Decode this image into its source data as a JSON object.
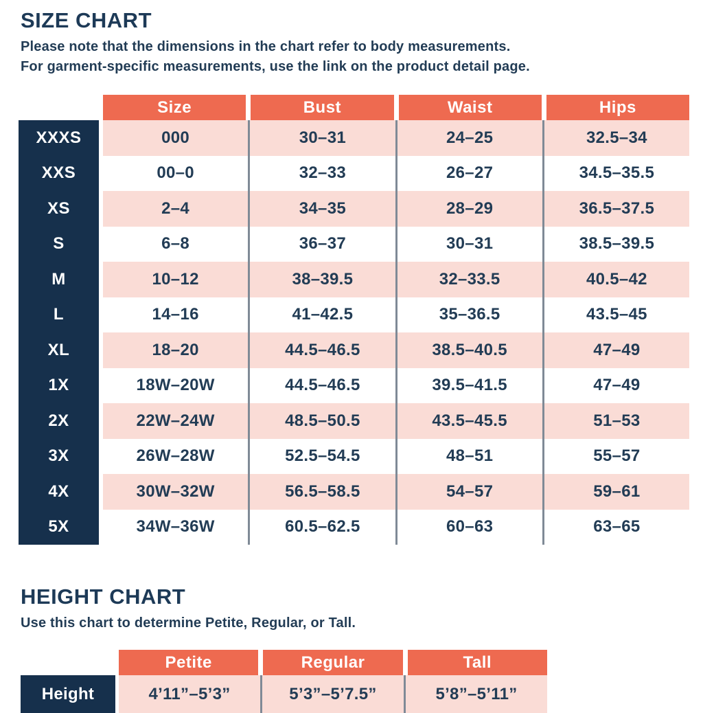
{
  "size_chart": {
    "title": "SIZE CHART",
    "note_line1": "Please note that the dimensions in the chart refer to body measurements.",
    "note_line2": "For garment-specific measurements, use the link on the product detail page.",
    "columns": [
      "Size",
      "Bust",
      "Waist",
      "Hips"
    ],
    "rows": [
      {
        "label": "XXXS",
        "size": "000",
        "bust": "30–31",
        "waist": "24–25",
        "hips": "32.5–34"
      },
      {
        "label": "XXS",
        "size": "00–0",
        "bust": "32–33",
        "waist": "26–27",
        "hips": "34.5–35.5"
      },
      {
        "label": "XS",
        "size": "2–4",
        "bust": "34–35",
        "waist": "28–29",
        "hips": "36.5–37.5"
      },
      {
        "label": "S",
        "size": "6–8",
        "bust": "36–37",
        "waist": "30–31",
        "hips": "38.5–39.5"
      },
      {
        "label": "M",
        "size": "10–12",
        "bust": "38–39.5",
        "waist": "32–33.5",
        "hips": "40.5–42"
      },
      {
        "label": "L",
        "size": "14–16",
        "bust": "41–42.5",
        "waist": "35–36.5",
        "hips": "43.5–45"
      },
      {
        "label": "XL",
        "size": "18–20",
        "bust": "44.5–46.5",
        "waist": "38.5–40.5",
        "hips": "47–49"
      },
      {
        "label": "1X",
        "size": "18W–20W",
        "bust": "44.5–46.5",
        "waist": "39.5–41.5",
        "hips": "47–49"
      },
      {
        "label": "2X",
        "size": "22W–24W",
        "bust": "48.5–50.5",
        "waist": "43.5–45.5",
        "hips": "51–53"
      },
      {
        "label": "3X",
        "size": "26W–28W",
        "bust": "52.5–54.5",
        "waist": "48–51",
        "hips": "55–57"
      },
      {
        "label": "4X",
        "size": "30W–32W",
        "bust": "56.5–58.5",
        "waist": "54–57",
        "hips": "59–61"
      },
      {
        "label": "5X",
        "size": "34W–36W",
        "bust": "60.5–62.5",
        "waist": "60–63",
        "hips": "63–65"
      }
    ]
  },
  "height_chart": {
    "title": "HEIGHT CHART",
    "note": "Use this chart to determine Petite, Regular, or Tall.",
    "columns": [
      "Petite",
      "Regular",
      "Tall"
    ],
    "row_label": "Height",
    "values": [
      "4’11”–5’3”",
      "5’3”–5’7.5”",
      "5’8”–5’11”"
    ]
  },
  "colors": {
    "header_orange": "#ee6a50",
    "row_pink": "#fadcd6",
    "row_white": "#ffffff",
    "label_navy": "#16304c",
    "text_navy": "#223c55",
    "divider_gray": "#7f8a96"
  }
}
